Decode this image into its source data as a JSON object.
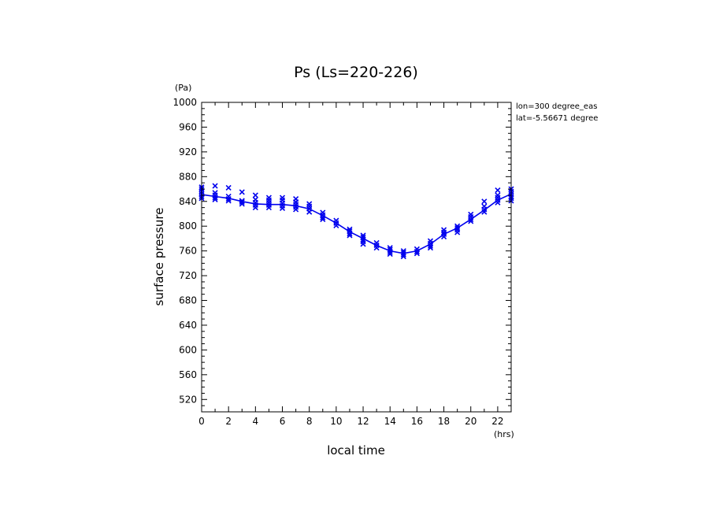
{
  "chart_data": {
    "type": "line",
    "title": "Ps (Ls=220-226)",
    "xlabel": "local time",
    "ylabel": "surface pressure",
    "x_unit": "(hrs)",
    "y_unit": "(Pa)",
    "xlim": [
      0,
      23
    ],
    "ylim": [
      500,
      1000
    ],
    "x_ticks": [
      "0",
      "2",
      "4",
      "6",
      "8",
      "10",
      "12",
      "14",
      "16",
      "18",
      "20",
      "22"
    ],
    "y_ticks": [
      "520",
      "560",
      "600",
      "640",
      "680",
      "720",
      "760",
      "800",
      "840",
      "880",
      "920",
      "960",
      "1000"
    ],
    "annotations": [
      "lon=300 degree_eas",
      "lat=-5.56671 degree"
    ],
    "grid": false,
    "colors": {
      "series": "#0000ee",
      "axes": "#000000"
    },
    "series": [
      {
        "kind": "line",
        "x": [
          0,
          1,
          2,
          3,
          4,
          5,
          6,
          7,
          8,
          9,
          10,
          11,
          12,
          13,
          14,
          15,
          16,
          17,
          18,
          19,
          20,
          21,
          22,
          23
        ],
        "y": [
          851,
          848,
          845,
          840,
          836,
          835,
          835,
          833,
          828,
          817,
          805,
          791,
          780,
          769,
          760,
          756,
          760,
          771,
          787,
          797,
          811,
          826,
          842,
          852
        ]
      },
      {
        "kind": "scatter",
        "marker": "x",
        "points": [
          [
            0,
            845
          ],
          [
            0,
            848
          ],
          [
            0,
            852
          ],
          [
            0,
            856
          ],
          [
            0,
            860
          ],
          [
            0,
            863
          ],
          [
            1,
            843
          ],
          [
            1,
            846
          ],
          [
            1,
            850
          ],
          [
            1,
            854
          ],
          [
            1,
            865
          ],
          [
            2,
            841
          ],
          [
            2,
            844
          ],
          [
            2,
            848
          ],
          [
            2,
            862
          ],
          [
            3,
            836
          ],
          [
            3,
            839
          ],
          [
            3,
            841
          ],
          [
            3,
            855
          ],
          [
            4,
            830
          ],
          [
            4,
            834
          ],
          [
            4,
            838
          ],
          [
            4,
            843
          ],
          [
            4,
            850
          ],
          [
            5,
            830
          ],
          [
            5,
            834
          ],
          [
            5,
            838
          ],
          [
            5,
            842
          ],
          [
            5,
            846
          ],
          [
            6,
            829
          ],
          [
            6,
            833
          ],
          [
            6,
            837
          ],
          [
            6,
            842
          ],
          [
            6,
            846
          ],
          [
            7,
            827
          ],
          [
            7,
            831
          ],
          [
            7,
            835
          ],
          [
            7,
            839
          ],
          [
            7,
            844
          ],
          [
            8,
            823
          ],
          [
            8,
            828
          ],
          [
            8,
            832
          ],
          [
            8,
            836
          ],
          [
            9,
            811
          ],
          [
            9,
            814
          ],
          [
            9,
            818
          ],
          [
            9,
            822
          ],
          [
            10,
            801
          ],
          [
            10,
            805
          ],
          [
            10,
            809
          ],
          [
            11,
            785
          ],
          [
            11,
            788
          ],
          [
            11,
            792
          ],
          [
            11,
            795
          ],
          [
            12,
            771
          ],
          [
            12,
            775
          ],
          [
            12,
            778
          ],
          [
            12,
            782
          ],
          [
            12,
            785
          ],
          [
            13,
            765
          ],
          [
            13,
            769
          ],
          [
            13,
            773
          ],
          [
            14,
            755
          ],
          [
            14,
            758
          ],
          [
            14,
            762
          ],
          [
            14,
            765
          ],
          [
            15,
            751
          ],
          [
            15,
            754
          ],
          [
            15,
            757
          ],
          [
            15,
            760
          ],
          [
            16,
            756
          ],
          [
            16,
            759
          ],
          [
            16,
            763
          ],
          [
            17,
            765
          ],
          [
            17,
            768
          ],
          [
            17,
            772
          ],
          [
            17,
            776
          ],
          [
            18,
            783
          ],
          [
            18,
            787
          ],
          [
            18,
            790
          ],
          [
            18,
            794
          ],
          [
            19,
            790
          ],
          [
            19,
            794
          ],
          [
            19,
            797
          ],
          [
            19,
            800
          ],
          [
            20,
            808
          ],
          [
            20,
            811
          ],
          [
            20,
            815
          ],
          [
            20,
            819
          ],
          [
            21,
            823
          ],
          [
            21,
            827
          ],
          [
            21,
            832
          ],
          [
            21,
            840
          ],
          [
            22,
            838
          ],
          [
            22,
            842
          ],
          [
            22,
            846
          ],
          [
            22,
            850
          ],
          [
            22,
            858
          ],
          [
            23,
            841
          ],
          [
            23,
            845
          ],
          [
            23,
            848
          ],
          [
            23,
            852
          ],
          [
            23,
            856
          ],
          [
            23,
            860
          ]
        ]
      }
    ]
  }
}
